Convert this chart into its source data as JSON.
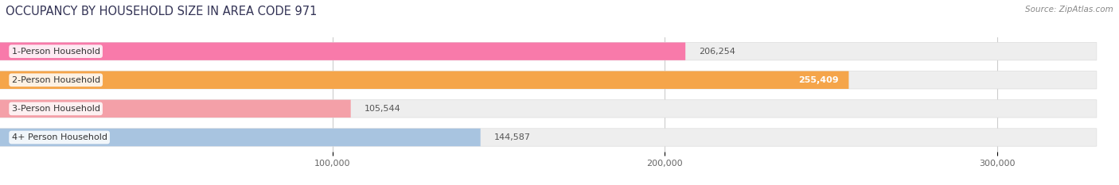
{
  "title": "OCCUPANCY BY HOUSEHOLD SIZE IN AREA CODE 971",
  "source": "Source: ZipAtlas.com",
  "categories": [
    "1-Person Household",
    "2-Person Household",
    "3-Person Household",
    "4+ Person Household"
  ],
  "values": [
    206254,
    255409,
    105544,
    144587
  ],
  "bar_colors": [
    "#f87aaa",
    "#f5a54a",
    "#f4a0a8",
    "#a8c4e0"
  ],
  "label_colors": [
    "#555555",
    "#ffffff",
    "#555555",
    "#555555"
  ],
  "value_labels": [
    "206,254",
    "255,409",
    "105,544",
    "144,587"
  ],
  "xlim": [
    0,
    330000
  ],
  "xticks": [
    100000,
    200000,
    300000
  ],
  "xtick_labels": [
    "100,000",
    "200,000",
    "300,000"
  ],
  "background_color": "#ffffff",
  "bar_background_color": "#eeeeee",
  "bar_height": 0.62,
  "title_fontsize": 10.5,
  "label_fontsize": 8,
  "value_fontsize": 8,
  "source_fontsize": 7.5
}
